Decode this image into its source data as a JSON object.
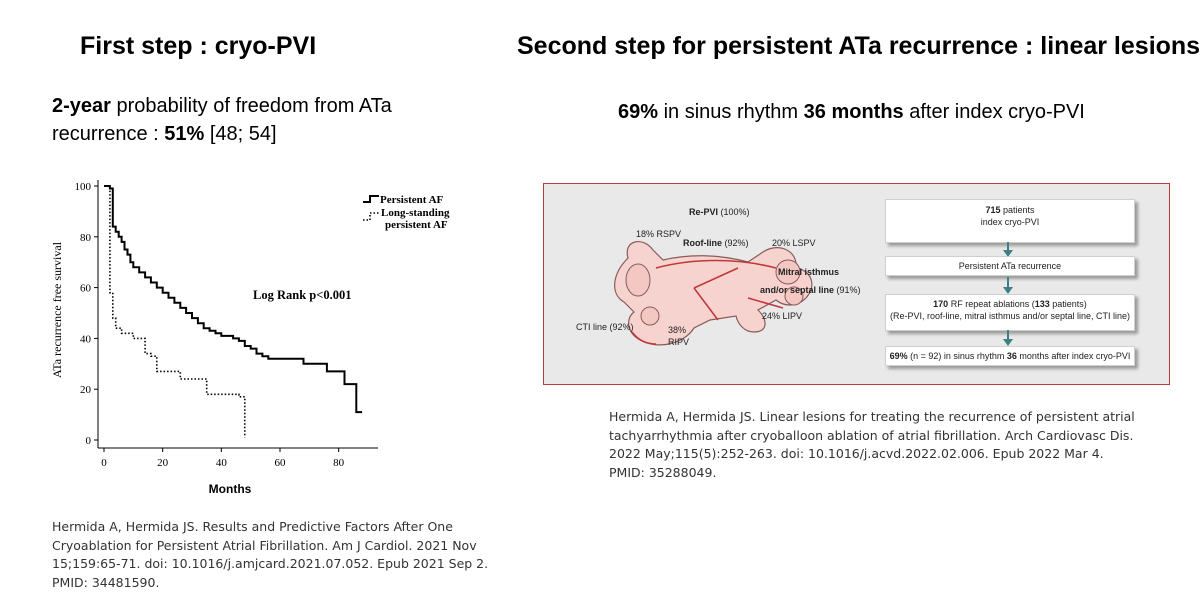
{
  "left": {
    "title": "First step : cryo-PVI",
    "sub_line1_bold": "2-year",
    "sub_line1_rest": " probability of freedom from ATa",
    "sub_line2_pre": "recurrence : ",
    "sub_line2_bold": "51%",
    "sub_line2_rest": " [48; 54]",
    "citation": [
      "Hermida A, Hermida JS. Results and Predictive Factors After One",
      "Cryoablation for Persistent Atrial Fibrillation. Am J Cardiol. 2021 Nov",
      "15;159:65-71. doi: 10.1016/j.amjcard.2021.07.052. Epub 2021 Sep 2.",
      "PMID: 34481590."
    ]
  },
  "right": {
    "title": "Second step for persistent ATa recurrence : linear lesions",
    "sub_bold1": "69%",
    "sub_mid": " in sinus rhythm ",
    "sub_bold2": "36 months",
    "sub_rest": " after index cryo-PVI",
    "citation": [
      "Hermida A, Hermida JS. Linear lesions for treating the recurrence of persistent atrial",
      "tachyarrhythmia after cryoballoon ablation of atrial fibrillation. Arch Cardiovasc Dis.",
      "2022 May;115(5):252-263. doi: 10.1016/j.acvd.2022.02.006. Epub 2022 Mar 4.",
      "PMID: 35288049."
    ],
    "figure": {
      "colors": {
        "border": "#c0393b",
        "panel": "#e9e9e9",
        "arrow": "#3d7f86",
        "atrium": "#f6d3cf",
        "lesion": "#c0393b"
      },
      "anatomy": {
        "repvi_bold": "Re-PVI",
        "repvi_rest": " (100%)",
        "rspv": "18% RSPV",
        "roof_bold": "Roof-line",
        "roof_rest": " (92%)",
        "lspv": "20% LSPV",
        "mitral_bold1": "Mitral isthmus",
        "mitral_bold2": "and/or septal line",
        "mitral_rest": " (91%)",
        "lipv": "24% LIPV",
        "cti": "CTI line (92%)",
        "ripv_pct": "38%",
        "ripv": "RIPV"
      },
      "flow": {
        "box1_bold": "715",
        "box1_rest": " patients",
        "box1_line2": "index cryo-PVI",
        "box2": "Persistent ATa recurrence",
        "box3_bold1": "170",
        "box3_mid": " RF repeat ablations (",
        "box3_bold2": "133",
        "box3_rest": " patients)",
        "box3_line2": "(Re-PVI, roof-line, mitral isthmus and/or septal line, CTI line)",
        "box4_bold1": "69%",
        "box4_mid": " (n = 92) in sinus rhythm ",
        "box4_bold2": "36",
        "box4_rest": " months after index cryo-PVI"
      }
    }
  },
  "chart_data": {
    "type": "line",
    "subtype": "kaplan-meier step curve",
    "xlabel": "Months",
    "ylabel": "ATa recurrence free survival",
    "xlim": [
      0,
      90
    ],
    "ylim": [
      0,
      100
    ],
    "x_ticks": [
      "0",
      "20",
      "40",
      "60",
      "80"
    ],
    "y_ticks": [
      "0",
      "20",
      "40",
      "60",
      "80",
      "100"
    ],
    "annotation": "Log Rank p<0.001",
    "legend": [
      "Persistent AF",
      "Long-standing",
      "persistent AF"
    ],
    "series": [
      {
        "name": "Persistent AF",
        "style": "solid",
        "points": [
          [
            0,
            100
          ],
          [
            2,
            100
          ],
          [
            2,
            99
          ],
          [
            3,
            99
          ],
          [
            3,
            84
          ],
          [
            4,
            84
          ],
          [
            4,
            82
          ],
          [
            5,
            82
          ],
          [
            5,
            80
          ],
          [
            6,
            80
          ],
          [
            6,
            78
          ],
          [
            7,
            78
          ],
          [
            7,
            75
          ],
          [
            8,
            75
          ],
          [
            8,
            73
          ],
          [
            9,
            73
          ],
          [
            9,
            70
          ],
          [
            10,
            70
          ],
          [
            10,
            68
          ],
          [
            12,
            68
          ],
          [
            12,
            66
          ],
          [
            14,
            66
          ],
          [
            14,
            64
          ],
          [
            16,
            64
          ],
          [
            16,
            62
          ],
          [
            18,
            62
          ],
          [
            18,
            60
          ],
          [
            20,
            60
          ],
          [
            20,
            58
          ],
          [
            22,
            58
          ],
          [
            22,
            56
          ],
          [
            24,
            56
          ],
          [
            24,
            54
          ],
          [
            26,
            54
          ],
          [
            26,
            52
          ],
          [
            28,
            52
          ],
          [
            28,
            50
          ],
          [
            30,
            50
          ],
          [
            30,
            48
          ],
          [
            32,
            48
          ],
          [
            32,
            46
          ],
          [
            34,
            46
          ],
          [
            34,
            44
          ],
          [
            36,
            44
          ],
          [
            36,
            43
          ],
          [
            38,
            43
          ],
          [
            38,
            42
          ],
          [
            40,
            42
          ],
          [
            40,
            41
          ],
          [
            44,
            41
          ],
          [
            44,
            40
          ],
          [
            46,
            40
          ],
          [
            46,
            39
          ],
          [
            48,
            39
          ],
          [
            48,
            37
          ],
          [
            50,
            37
          ],
          [
            50,
            36
          ],
          [
            52,
            36
          ],
          [
            52,
            34
          ],
          [
            54,
            34
          ],
          [
            54,
            33
          ],
          [
            56,
            33
          ],
          [
            56,
            32
          ],
          [
            68,
            32
          ],
          [
            68,
            30
          ],
          [
            76,
            30
          ],
          [
            76,
            27
          ],
          [
            82,
            27
          ],
          [
            82,
            22
          ],
          [
            86,
            22
          ],
          [
            86,
            11
          ],
          [
            88,
            11
          ]
        ]
      },
      {
        "name": "Long-standing persistent AF",
        "style": "dotted",
        "points": [
          [
            0,
            100
          ],
          [
            2,
            100
          ],
          [
            2,
            58
          ],
          [
            3,
            58
          ],
          [
            3,
            48
          ],
          [
            4,
            48
          ],
          [
            4,
            44
          ],
          [
            6,
            44
          ],
          [
            6,
            42
          ],
          [
            10,
            42
          ],
          [
            10,
            40
          ],
          [
            14,
            40
          ],
          [
            14,
            34
          ],
          [
            16,
            34
          ],
          [
            16,
            33
          ],
          [
            18,
            33
          ],
          [
            18,
            27
          ],
          [
            26,
            27
          ],
          [
            26,
            24
          ],
          [
            35,
            24
          ],
          [
            35,
            18
          ],
          [
            46,
            18
          ],
          [
            46,
            17
          ],
          [
            48,
            17
          ],
          [
            48,
            1
          ]
        ]
      }
    ]
  }
}
